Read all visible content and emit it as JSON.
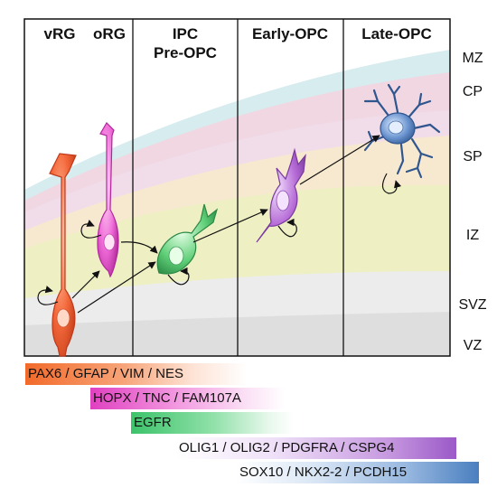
{
  "columns": [
    {
      "id": "vrg",
      "label": "vRG"
    },
    {
      "id": "org",
      "label": "oRG"
    },
    {
      "id": "ipc",
      "label": "IPC",
      "label2": "Pre-OPC"
    },
    {
      "id": "early",
      "label": "Early-OPC"
    },
    {
      "id": "late",
      "label": "Late-OPC"
    }
  ],
  "zones": [
    "MZ",
    "CP",
    "SP",
    "IZ",
    "SVZ",
    "VZ"
  ],
  "markers": [
    {
      "text": "PAX6 / GFAP / VIM / NES",
      "color": "#f26a2a"
    },
    {
      "text": "HOPX / TNC / FAM107A",
      "color": "#e040c0"
    },
    {
      "text": "EGFR",
      "color": "#3cc36a"
    },
    {
      "text": "OLIG1 / OLIG2 / PDGFRA / CSPG4",
      "color": "#9b59c8"
    },
    {
      "text": "SOX10 / NKX2-2 / PCDH15",
      "color": "#4a7fbf"
    }
  ]
}
